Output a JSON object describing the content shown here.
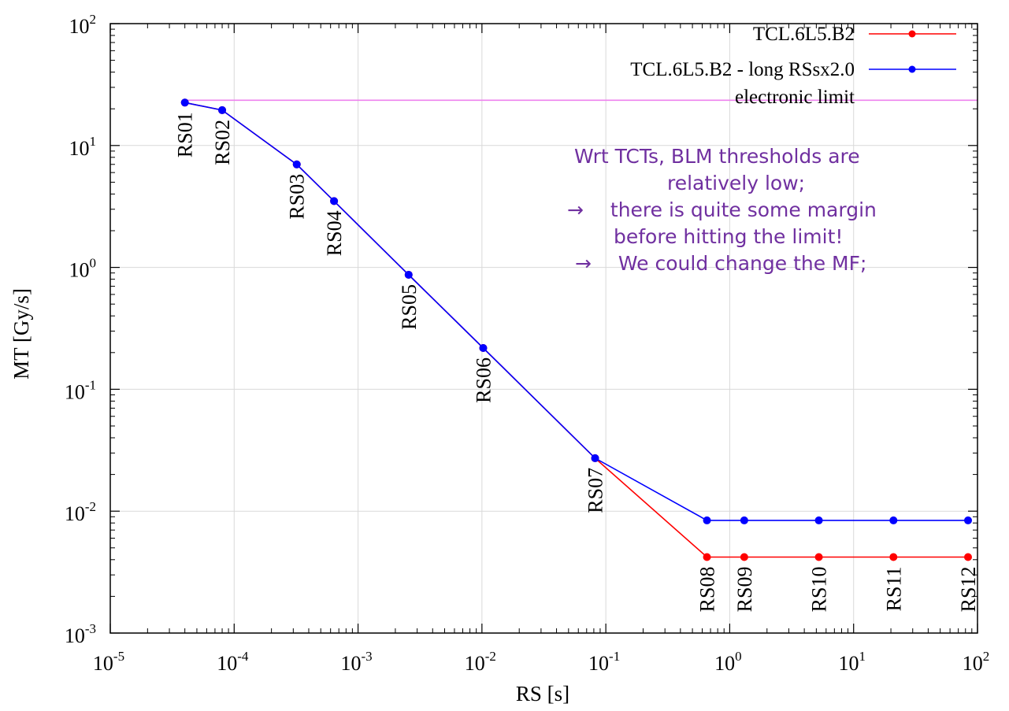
{
  "chart_data": {
    "type": "line",
    "xlabel": "RS [s]",
    "ylabel": "MT [Gy/s]",
    "x_scale": "log",
    "y_scale": "log",
    "xlim": [
      1e-05,
      100
    ],
    "ylim": [
      0.001,
      100
    ],
    "x_ticks": [
      {
        "value": 1e-05,
        "base": "10",
        "exp": "-5"
      },
      {
        "value": 0.0001,
        "base": "10",
        "exp": "-4"
      },
      {
        "value": 0.001,
        "base": "10",
        "exp": "-3"
      },
      {
        "value": 0.01,
        "base": "10",
        "exp": "-2"
      },
      {
        "value": 0.1,
        "base": "10",
        "exp": "-1"
      },
      {
        "value": 1,
        "base": "10",
        "exp": "0"
      },
      {
        "value": 10,
        "base": "10",
        "exp": "1"
      },
      {
        "value": 100,
        "base": "10",
        "exp": "2"
      }
    ],
    "y_ticks": [
      {
        "value": 0.001,
        "base": "10",
        "exp": "-3"
      },
      {
        "value": 0.01,
        "base": "10",
        "exp": "-2"
      },
      {
        "value": 0.1,
        "base": "10",
        "exp": "-1"
      },
      {
        "value": 1,
        "base": "10",
        "exp": "0"
      },
      {
        "value": 10,
        "base": "10",
        "exp": "1"
      },
      {
        "value": 100,
        "base": "10",
        "exp": "2"
      }
    ],
    "grid": true,
    "legend_position": "top-right",
    "x": [
      4e-05,
      8e-05,
      0.00032,
      0.00064,
      0.00256,
      0.01024,
      0.08192,
      0.655,
      1.31,
      5.24,
      20.97,
      83.89
    ],
    "point_labels": [
      "RS01",
      "RS02",
      "RS03",
      "RS04",
      "RS05",
      "RS06",
      "RS07",
      "RS08",
      "RS09",
      "RS10",
      "RS11",
      "RS12"
    ],
    "series": [
      {
        "name": "TCL.6L5.B2",
        "color": "#ff0000",
        "marker": "circle",
        "values": [
          22.5,
          19.5,
          7.0,
          3.5,
          0.87,
          0.218,
          0.0272,
          0.0042,
          0.0042,
          0.0042,
          0.0042,
          0.0042
        ]
      },
      {
        "name": "TCL.6L5.B2 - long RSsx2.0",
        "color": "#0000ff",
        "marker": "circle",
        "values": [
          22.5,
          19.5,
          7.0,
          3.5,
          0.87,
          0.218,
          0.0272,
          0.0084,
          0.0084,
          0.0084,
          0.0084,
          0.0084
        ]
      },
      {
        "name": "electronic limit",
        "color": "#ee82ee",
        "marker": "none",
        "x": [
          4e-05,
          100
        ],
        "values": [
          23.5,
          23.5
        ]
      }
    ],
    "annotation": {
      "color": "#7030a0",
      "lines": [
        "Wrt TCTs, BLM thresholds are",
        "relatively low;",
        "there is quite some margin",
        "before hitting the limit!",
        "We could change the MF;"
      ],
      "arrow_glyph": "→"
    }
  }
}
